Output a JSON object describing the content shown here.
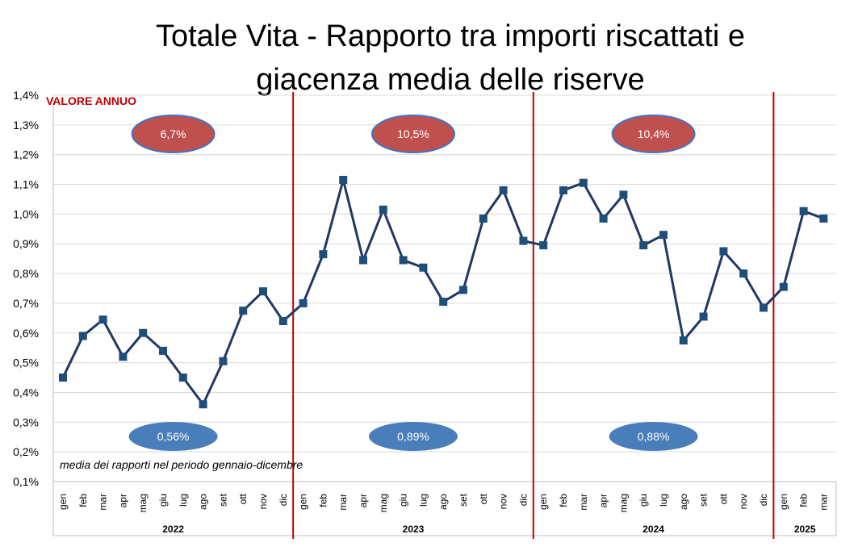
{
  "chart_data": {
    "type": "line",
    "title_lines": [
      "Totale Vita - Rapporto tra importi riscattati e",
      "giacenza media delle riserve"
    ],
    "y_ticks": [
      "1,4%",
      "1,3%",
      "1,2%",
      "1,1%",
      "1,0%",
      "0,9%",
      "0,8%",
      "0,7%",
      "0,6%",
      "0,5%",
      "0,4%",
      "0,3%",
      "0,2%",
      "0,1%"
    ],
    "ylim": [
      0.1,
      1.4
    ],
    "unit": "%",
    "grid": true,
    "annual_label": "VALORE ANNUO",
    "average_note": "media dei rapporti nel periodo gennaio-dicembre",
    "years": [
      {
        "year": "2022",
        "months": [
          "gen",
          "feb",
          "mar",
          "apr",
          "mag",
          "giu",
          "lug",
          "ago",
          "set",
          "ott",
          "nov",
          "dic"
        ],
        "values": [
          0.45,
          0.59,
          0.645,
          0.52,
          0.6,
          0.54,
          0.45,
          0.36,
          0.505,
          0.675,
          0.74,
          0.64
        ],
        "annual_value": "6,7%",
        "average": "0,56%"
      },
      {
        "year": "2023",
        "months": [
          "gen",
          "feb",
          "mar",
          "apr",
          "mag",
          "giu",
          "lug",
          "ago",
          "set",
          "ott",
          "nov",
          "dic"
        ],
        "values": [
          0.7,
          0.865,
          1.115,
          0.845,
          1.015,
          0.845,
          0.82,
          0.705,
          0.745,
          0.985,
          1.08,
          0.91
        ],
        "annual_value": "10,5%",
        "average": "0,89%"
      },
      {
        "year": "2024",
        "months": [
          "gen",
          "feb",
          "mar",
          "apr",
          "mag",
          "giu",
          "lug",
          "ago",
          "set",
          "ott",
          "nov",
          "dic"
        ],
        "values": [
          0.895,
          1.08,
          1.105,
          0.985,
          1.065,
          0.895,
          0.93,
          0.575,
          0.655,
          0.875,
          0.8,
          0.685
        ],
        "annual_value": "10,4%",
        "average": "0,88%"
      },
      {
        "year": "2025",
        "months": [
          "gen",
          "feb",
          "mar"
        ],
        "values": [
          0.755,
          1.01,
          0.985
        ],
        "annual_value": "",
        "average": ""
      }
    ],
    "colors": {
      "line": "#1f3864",
      "marker": "#1f4e79",
      "separator": "#c00000",
      "annual_badge": "#c0504d",
      "annual_badge_border": "#4472c4",
      "average_badge": "#4a7ebb",
      "grid": "#d9d9d9"
    }
  }
}
